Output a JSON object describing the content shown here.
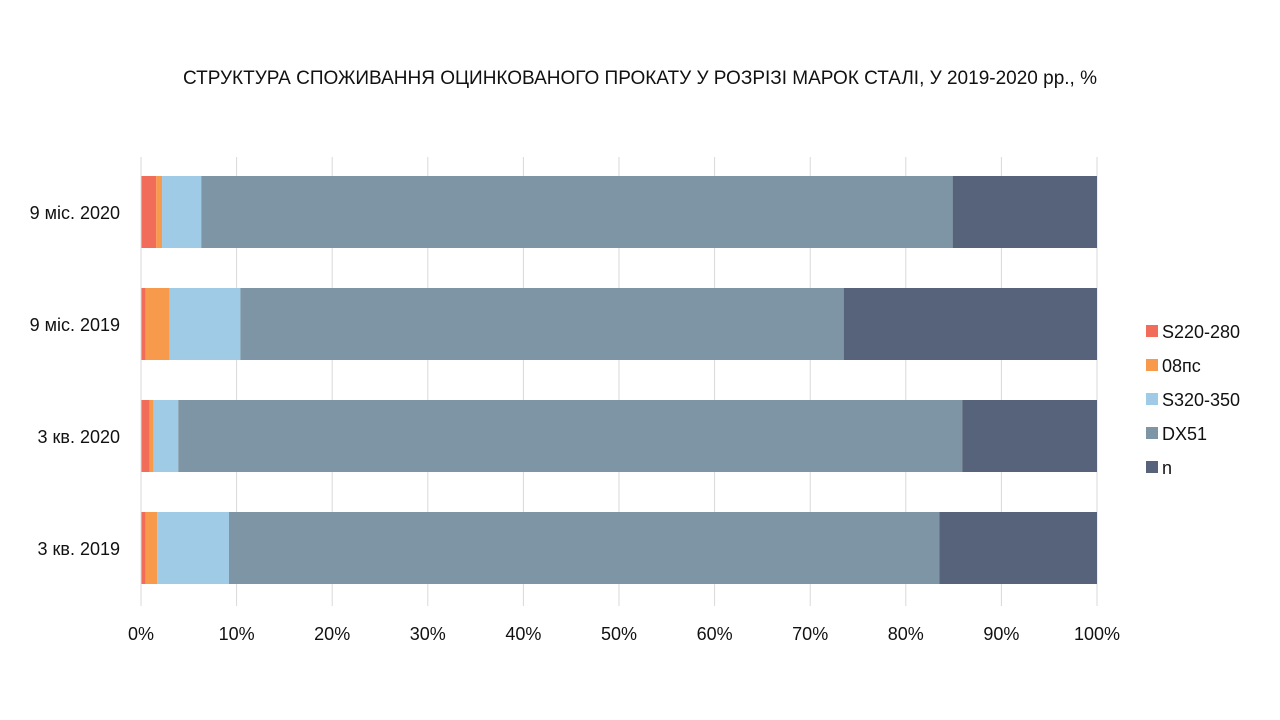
{
  "chart_data": {
    "type": "bar",
    "orientation": "horizontal",
    "stacked": "percent",
    "title": "СТРУКТУРА СПОЖИВАННЯ ОЦИНКОВАНОГО ПРОКАТУ У РОЗРІЗІ МАРОК СТАЛІ, У 2019-2020 рр., %",
    "categories": [
      "9 міс. 2020",
      "9 міс. 2019",
      "3 кв. 2020",
      "3 кв. 2019"
    ],
    "xlim": [
      0,
      100
    ],
    "x_ticks": [
      "0%",
      "10%",
      "20%",
      "30%",
      "40%",
      "50%",
      "60%",
      "70%",
      "80%",
      "90%",
      "100%"
    ],
    "grid": "vertical",
    "legend_position": "right",
    "series": [
      {
        "name": "S220-280",
        "color": "#f26c5a",
        "values": [
          1.6,
          0.5,
          0.9,
          0.5
        ]
      },
      {
        "name": "08пс",
        "color": "#f89a4b",
        "values": [
          0.6,
          2.5,
          0.4,
          1.2
        ]
      },
      {
        "name": "S320-350",
        "color": "#9fcbe7",
        "values": [
          4.1,
          7.4,
          2.6,
          7.5
        ]
      },
      {
        "name": "DX51",
        "color": "#7e95a6",
        "values": [
          78.6,
          63.1,
          82.0,
          74.3
        ]
      },
      {
        "name": "n",
        "color": "#56637a",
        "values": [
          15.1,
          26.5,
          14.1,
          16.5
        ]
      }
    ]
  }
}
